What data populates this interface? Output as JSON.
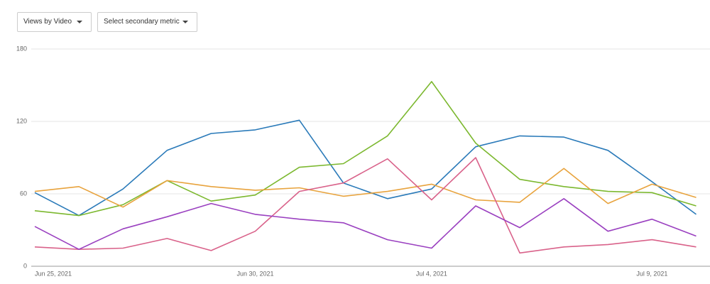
{
  "controls": {
    "primary": "Views by Video",
    "secondary": "Select secondary metric"
  },
  "chart_data": {
    "type": "line",
    "categories": [
      "Jun 25, 2021",
      null,
      null,
      null,
      null,
      "Jun 30, 2021",
      null,
      null,
      null,
      "Jul 4, 2021",
      null,
      null,
      null,
      null,
      "Jul 9, 2021",
      null
    ],
    "series": [
      {
        "color": "#2a7ab9",
        "values": [
          61,
          42,
          64,
          96,
          110,
          113,
          121,
          69,
          56,
          64,
          99,
          108,
          107,
          96,
          70,
          43
        ]
      },
      {
        "color": "#7cb82f",
        "values": [
          46,
          42,
          51,
          71,
          54,
          59,
          82,
          85,
          108,
          153,
          102,
          72,
          66,
          62,
          61,
          50
        ]
      },
      {
        "color": "#e8a33d",
        "values": [
          62,
          66,
          49,
          71,
          66,
          63,
          65,
          58,
          62,
          68,
          55,
          53,
          81,
          52,
          68,
          57
        ]
      },
      {
        "color": "#d9628a",
        "values": [
          16,
          14,
          15,
          23,
          13,
          29,
          62,
          69,
          89,
          55,
          90,
          11,
          16,
          18,
          22,
          16
        ]
      },
      {
        "color": "#9a40c0",
        "values": [
          33,
          14,
          31,
          41,
          52,
          43,
          39,
          36,
          22,
          15,
          50,
          32,
          56,
          29,
          39,
          25
        ]
      }
    ],
    "ylim": [
      0,
      180
    ],
    "yticks": [
      0,
      60,
      120,
      180
    ],
    "grid": true
  }
}
